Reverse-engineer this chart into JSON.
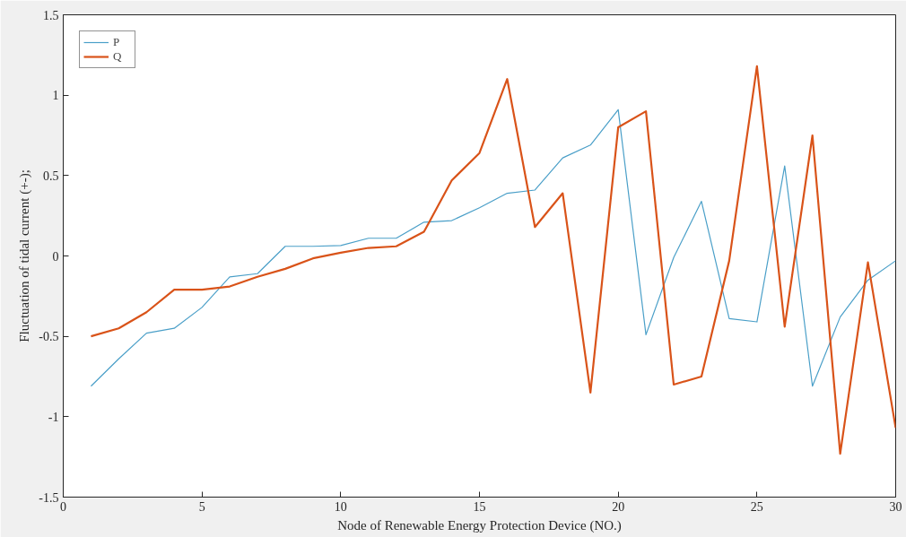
{
  "chart_data": {
    "type": "line",
    "xlabel": "Node of Renewable Energy Protection Device (NO.)",
    "ylabel": "Fluctuation of tidal current (+-);",
    "x": [
      1,
      2,
      3,
      4,
      5,
      6,
      7,
      8,
      9,
      10,
      11,
      12,
      13,
      14,
      15,
      16,
      17,
      18,
      19,
      20,
      21,
      22,
      23,
      24,
      25,
      26,
      27,
      28,
      29,
      30
    ],
    "series": [
      {
        "name": "P",
        "color": "#4a9fc8",
        "values": [
          -0.81,
          -0.64,
          -0.48,
          -0.45,
          -0.32,
          -0.13,
          -0.11,
          0.06,
          0.06,
          0.065,
          0.11,
          0.11,
          0.21,
          0.22,
          0.3,
          0.39,
          0.41,
          0.61,
          0.69,
          0.91,
          -0.49,
          -0.01,
          0.34,
          -0.39,
          -0.41,
          0.56,
          -0.81,
          -0.38,
          -0.15,
          -0.03
        ]
      },
      {
        "name": "Q",
        "color": "#d95319",
        "values": [
          -0.5,
          -0.45,
          -0.35,
          -0.21,
          -0.21,
          -0.19,
          -0.13,
          -0.08,
          -0.015,
          0.02,
          0.05,
          0.06,
          0.15,
          0.47,
          0.64,
          1.1,
          0.18,
          0.39,
          -0.85,
          0.8,
          0.9,
          -0.8,
          -0.75,
          -0.03,
          1.18,
          -0.44,
          0.75,
          -1.23,
          -0.04,
          -1.07
        ]
      }
    ],
    "xlim": [
      0,
      30
    ],
    "xticks": [
      0,
      5,
      10,
      15,
      20,
      25,
      30
    ],
    "ylim": [
      -1.5,
      1.5
    ],
    "yticks": [
      -1.5,
      -1,
      -0.5,
      0,
      0.5,
      1,
      1.5
    ],
    "grid": false,
    "legend": "top left",
    "marker": "none",
    "line_style": "solid"
  }
}
